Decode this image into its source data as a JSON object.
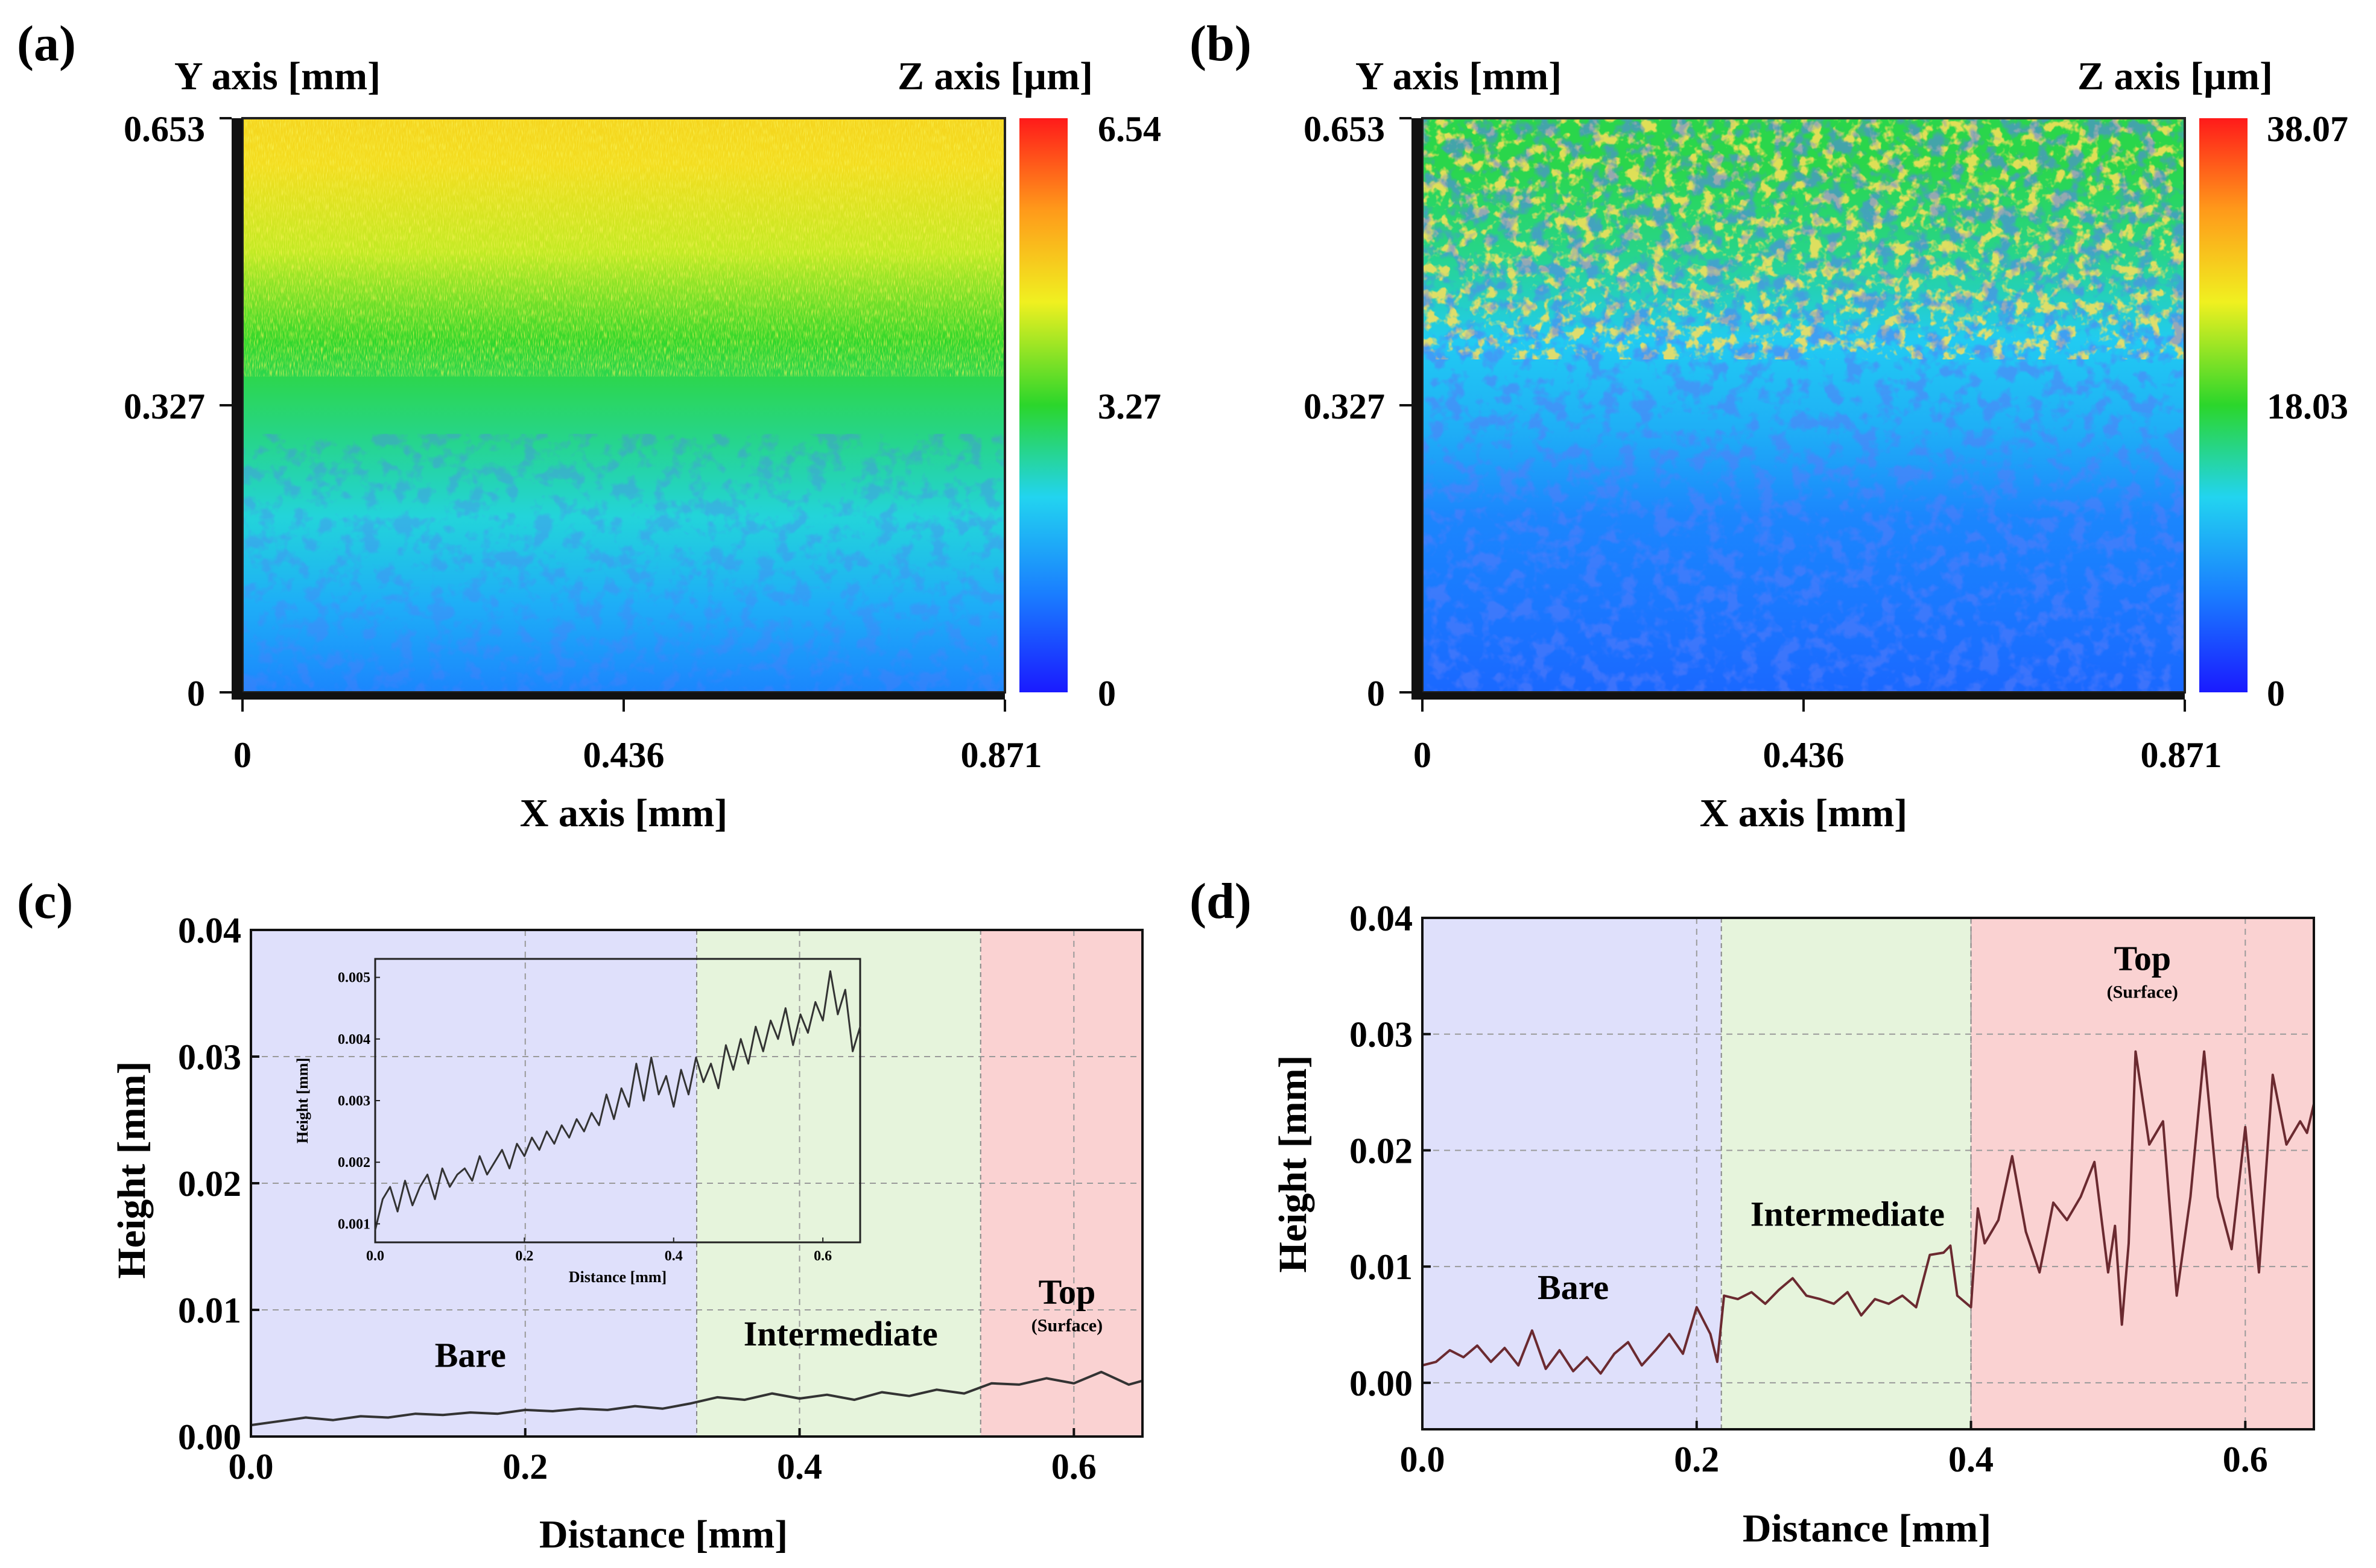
{
  "chart_data": [
    {
      "panel": "(a)",
      "type": "heatmap",
      "xlabel": "X axis [mm]",
      "ylabel": "Y axis [mm]",
      "zlabel": "Z axis [µm]",
      "xlim": [
        0,
        0.871
      ],
      "ylim": [
        0,
        0.653
      ],
      "zlim": [
        0,
        6.54
      ],
      "x_ticks": [
        "0",
        "0.436",
        "0.871"
      ],
      "y_ticks": [
        "0",
        "0.327",
        "0.653"
      ],
      "z_ticks": [
        "0",
        "3.27",
        "6.54"
      ],
      "colormap": [
        "#1a1aff",
        "#1a7dff",
        "#22d4f0",
        "#2bd62b",
        "#f0f020",
        "#ff9a1a",
        "#ff1a1a"
      ],
      "height_profile": {
        "y": [
          0,
          0.1,
          0.2,
          0.3,
          0.4,
          0.5,
          0.6,
          0.653
        ],
        "z": [
          1.2,
          1.7,
          2.3,
          2.8,
          3.3,
          4.1,
          4.6,
          4.7
        ]
      }
    },
    {
      "panel": "(b)",
      "type": "heatmap",
      "xlabel": "X axis [mm]",
      "ylabel": "Y axis [mm]",
      "zlabel": "Z axis [µm]",
      "xlim": [
        0,
        0.871
      ],
      "ylim": [
        0,
        0.653
      ],
      "zlim": [
        0,
        38.07
      ],
      "x_ticks": [
        "0",
        "0.436",
        "0.871"
      ],
      "y_ticks": [
        "0",
        "0.327",
        "0.653"
      ],
      "z_ticks": [
        "0",
        "18.03",
        "38.07"
      ],
      "colormap": [
        "#1a1aff",
        "#1a7dff",
        "#22d4f0",
        "#2bd62b",
        "#f0f020",
        "#ff9a1a",
        "#ff1a1a"
      ],
      "height_profile": {
        "y": [
          0,
          0.1,
          0.2,
          0.3,
          0.4,
          0.5,
          0.6,
          0.653
        ],
        "z": [
          5,
          6,
          7,
          10,
          12,
          16,
          18,
          18
        ]
      }
    },
    {
      "panel": "(c)",
      "type": "line",
      "xlabel": "Distance [mm]",
      "ylabel": "Height [mm]",
      "xlim": [
        0,
        0.65
      ],
      "ylim": [
        0,
        0.04
      ],
      "x_ticks": [
        0,
        0.2,
        0.4,
        0.6
      ],
      "x_tick_labels": [
        "0.0",
        "0.2",
        "0.4",
        "0.6"
      ],
      "y_ticks": [
        0,
        0.01,
        0.02,
        0.03,
        0.04
      ],
      "y_tick_labels": [
        "0.00",
        "0.01",
        "0.02",
        "0.03",
        "0.04"
      ],
      "regions": [
        {
          "label": "Bare",
          "sublabel": "",
          "x0": 0.0,
          "x1": 0.325,
          "color": "#dfe0fb",
          "label_x": 0.16,
          "label_y": 0.0055
        },
        {
          "label": "Intermediate",
          "sublabel": "",
          "x0": 0.325,
          "x1": 0.532,
          "color": "#e6f4dc",
          "label_x": 0.43,
          "label_y": 0.0072
        },
        {
          "label": "Top",
          "sublabel": "(Surface)",
          "x0": 0.532,
          "x1": 0.65,
          "color": "#fad2d2",
          "label_x": 0.595,
          "label_y": 0.0105
        }
      ],
      "series": [
        {
          "name": "profile",
          "color": "#333333",
          "x": [
            0,
            0.02,
            0.04,
            0.06,
            0.08,
            0.1,
            0.12,
            0.14,
            0.16,
            0.18,
            0.2,
            0.22,
            0.24,
            0.26,
            0.28,
            0.3,
            0.32,
            0.34,
            0.36,
            0.38,
            0.4,
            0.42,
            0.44,
            0.46,
            0.48,
            0.5,
            0.52,
            0.54,
            0.56,
            0.58,
            0.6,
            0.62,
            0.64,
            0.65
          ],
          "y": [
            0.0009,
            0.0012,
            0.0015,
            0.0013,
            0.0016,
            0.0015,
            0.0018,
            0.0017,
            0.0019,
            0.0018,
            0.0021,
            0.002,
            0.0022,
            0.0021,
            0.0024,
            0.0022,
            0.0026,
            0.0031,
            0.0029,
            0.0034,
            0.003,
            0.0033,
            0.0029,
            0.0035,
            0.0032,
            0.0037,
            0.0034,
            0.0042,
            0.0041,
            0.0046,
            0.0042,
            0.0051,
            0.0041,
            0.0044
          ]
        }
      ],
      "inset": {
        "xlabel": "Distance [mm]",
        "ylabel": "Height [mm]",
        "xlim": [
          0,
          0.65
        ],
        "ylim": [
          0.0007,
          0.0053
        ],
        "x_ticks": [
          0,
          0.2,
          0.4,
          0.6
        ],
        "x_tick_labels": [
          "0.0",
          "0.2",
          "0.4",
          "0.6"
        ],
        "y_ticks": [
          0.001,
          0.002,
          0.003,
          0.004,
          0.005
        ],
        "y_tick_labels": [
          "0.001",
          "0.002",
          "0.003",
          "0.004",
          "0.005"
        ],
        "x": [
          0,
          0.01,
          0.02,
          0.03,
          0.04,
          0.05,
          0.06,
          0.07,
          0.08,
          0.09,
          0.1,
          0.11,
          0.12,
          0.13,
          0.14,
          0.15,
          0.16,
          0.17,
          0.18,
          0.19,
          0.2,
          0.21,
          0.22,
          0.23,
          0.24,
          0.25,
          0.26,
          0.27,
          0.28,
          0.29,
          0.3,
          0.31,
          0.32,
          0.33,
          0.34,
          0.35,
          0.36,
          0.37,
          0.38,
          0.39,
          0.4,
          0.41,
          0.42,
          0.43,
          0.44,
          0.45,
          0.46,
          0.47,
          0.48,
          0.49,
          0.5,
          0.51,
          0.52,
          0.53,
          0.54,
          0.55,
          0.56,
          0.57,
          0.58,
          0.59,
          0.6,
          0.61,
          0.62,
          0.63,
          0.64,
          0.65
        ],
        "y": [
          0.0009,
          0.0014,
          0.0016,
          0.0012,
          0.0017,
          0.0013,
          0.0016,
          0.0018,
          0.0014,
          0.0019,
          0.0016,
          0.0018,
          0.0019,
          0.0017,
          0.0021,
          0.0018,
          0.002,
          0.0022,
          0.0019,
          0.0023,
          0.0021,
          0.0024,
          0.0022,
          0.0025,
          0.0023,
          0.0026,
          0.0024,
          0.0027,
          0.0025,
          0.0028,
          0.0026,
          0.0031,
          0.0027,
          0.0032,
          0.0029,
          0.0036,
          0.003,
          0.0037,
          0.0031,
          0.0034,
          0.0029,
          0.0035,
          0.0031,
          0.0037,
          0.0033,
          0.0036,
          0.0032,
          0.0039,
          0.0035,
          0.004,
          0.0036,
          0.0042,
          0.0038,
          0.0043,
          0.004,
          0.0045,
          0.0039,
          0.0044,
          0.0041,
          0.0046,
          0.0043,
          0.0051,
          0.0044,
          0.0048,
          0.0038,
          0.0042
        ]
      }
    },
    {
      "panel": "(d)",
      "type": "line",
      "xlabel": "Distance [mm]",
      "ylabel": "Height [mm]",
      "xlim": [
        0,
        0.65
      ],
      "ylim": [
        -0.004,
        0.04
      ],
      "x_ticks": [
        0,
        0.2,
        0.4,
        0.6
      ],
      "x_tick_labels": [
        "0.0",
        "0.2",
        "0.4",
        "0.6"
      ],
      "y_ticks": [
        0,
        0.01,
        0.02,
        0.03,
        0.04
      ],
      "y_tick_labels": [
        "0.00",
        "0.01",
        "0.02",
        "0.03",
        "0.04"
      ],
      "regions": [
        {
          "label": "Bare",
          "sublabel": "",
          "x0": 0.0,
          "x1": 0.218,
          "color": "#dfe0fb",
          "label_x": 0.11,
          "label_y": 0.0072
        },
        {
          "label": "Intermediate",
          "sublabel": "",
          "x0": 0.218,
          "x1": 0.4,
          "color": "#e6f4dc",
          "label_x": 0.31,
          "label_y": 0.0135
        },
        {
          "label": "Top",
          "sublabel": "(Surface)",
          "x0": 0.4,
          "x1": 0.65,
          "color": "#fad2d2",
          "label_x": 0.525,
          "label_y": 0.0355
        }
      ],
      "series": [
        {
          "name": "profile",
          "color": "#6b2a30",
          "x": [
            0,
            0.01,
            0.02,
            0.03,
            0.04,
            0.05,
            0.06,
            0.07,
            0.08,
            0.09,
            0.1,
            0.11,
            0.12,
            0.13,
            0.14,
            0.15,
            0.16,
            0.17,
            0.18,
            0.19,
            0.2,
            0.21,
            0.215,
            0.22,
            0.23,
            0.24,
            0.25,
            0.26,
            0.27,
            0.28,
            0.29,
            0.3,
            0.31,
            0.32,
            0.33,
            0.34,
            0.35,
            0.36,
            0.37,
            0.38,
            0.385,
            0.39,
            0.4,
            0.405,
            0.41,
            0.42,
            0.43,
            0.44,
            0.45,
            0.46,
            0.47,
            0.48,
            0.49,
            0.5,
            0.505,
            0.51,
            0.515,
            0.52,
            0.53,
            0.54,
            0.55,
            0.56,
            0.57,
            0.58,
            0.59,
            0.6,
            0.61,
            0.62,
            0.63,
            0.64,
            0.645,
            0.65
          ],
          "y": [
            0.0015,
            0.0018,
            0.0028,
            0.0022,
            0.0032,
            0.0018,
            0.003,
            0.0015,
            0.0045,
            0.0012,
            0.0028,
            0.001,
            0.0022,
            0.0008,
            0.0025,
            0.0035,
            0.0015,
            0.0028,
            0.0042,
            0.0025,
            0.0065,
            0.0042,
            0.0018,
            0.0075,
            0.0072,
            0.0078,
            0.0068,
            0.008,
            0.009,
            0.0075,
            0.0072,
            0.0068,
            0.0078,
            0.0058,
            0.0072,
            0.0068,
            0.0075,
            0.0065,
            0.011,
            0.0112,
            0.0118,
            0.0075,
            0.0065,
            0.015,
            0.012,
            0.014,
            0.0195,
            0.013,
            0.0095,
            0.0155,
            0.014,
            0.016,
            0.019,
            0.0095,
            0.0135,
            0.005,
            0.012,
            0.0285,
            0.0205,
            0.0225,
            0.0075,
            0.016,
            0.0285,
            0.016,
            0.0115,
            0.022,
            0.0095,
            0.0265,
            0.0205,
            0.0225,
            0.0215,
            0.024
          ]
        }
      ]
    }
  ],
  "panels": {
    "a": {
      "label": "(a)"
    },
    "b": {
      "label": "(b)"
    },
    "c": {
      "label": "(c)"
    },
    "d": {
      "label": "(d)"
    }
  }
}
